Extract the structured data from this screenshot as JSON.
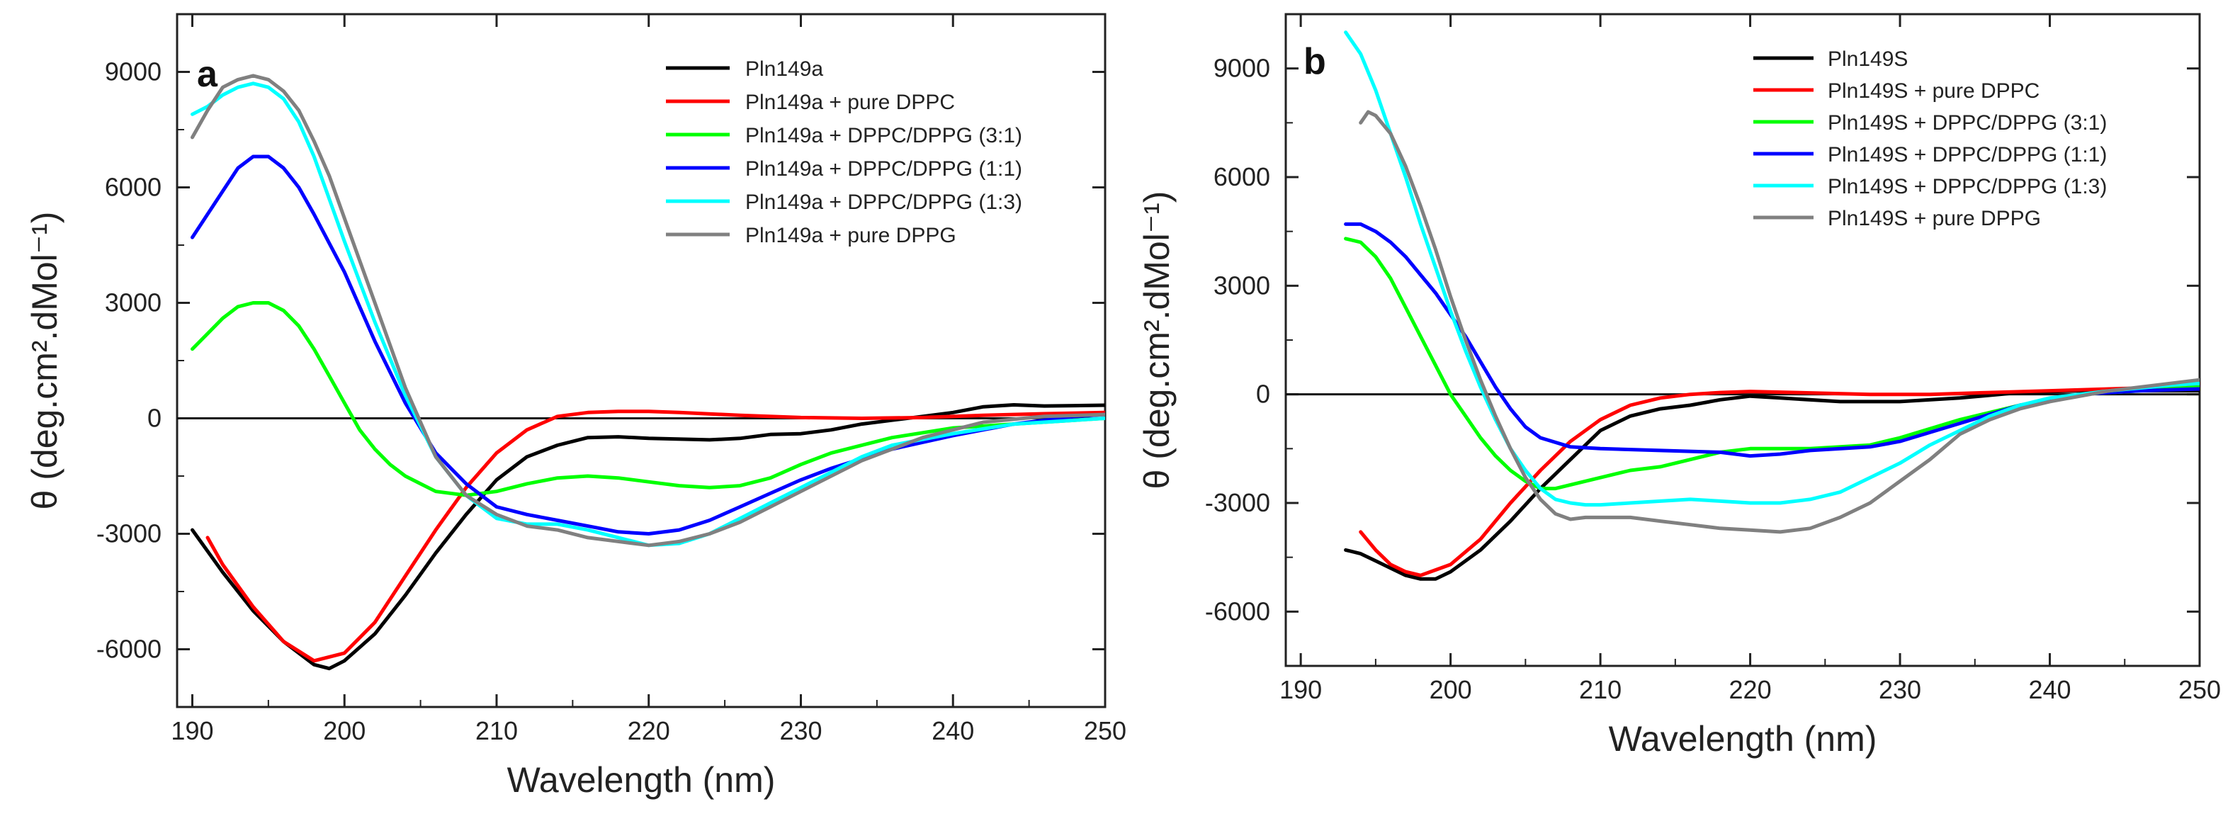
{
  "chart_data": [
    {
      "type": "line",
      "panel_label": "a",
      "title": "",
      "xlabel": "Wavelength (nm)",
      "ylabel": "θ (deg.cm².dMol⁻¹)",
      "xlim": [
        189,
        250
      ],
      "ylim": [
        -7500,
        10500
      ],
      "xticks": [
        190,
        200,
        210,
        220,
        230,
        240,
        250
      ],
      "yticks": [
        -6000,
        -3000,
        0,
        3000,
        6000,
        9000
      ],
      "zero_line": true,
      "legend_position": "top-right",
      "series": [
        {
          "name": "Pln149a",
          "color": "#000000",
          "x": [
            190,
            192,
            194,
            196,
            198,
            199,
            200,
            202,
            204,
            206,
            208,
            210,
            212,
            214,
            216,
            218,
            220,
            224,
            226,
            228,
            230,
            232,
            234,
            236,
            238,
            240,
            242,
            244,
            246,
            248,
            250
          ],
          "y": [
            -2900,
            -4000,
            -5000,
            -5800,
            -6400,
            -6500,
            -6300,
            -5600,
            -4600,
            -3500,
            -2500,
            -1600,
            -1000,
            -700,
            -500,
            -480,
            -520,
            -560,
            -520,
            -420,
            -400,
            -300,
            -150,
            -50,
            50,
            150,
            300,
            350,
            320,
            330,
            340
          ]
        },
        {
          "name": "Pln149a + pure DPPC",
          "color": "#ff0000",
          "x": [
            191,
            192,
            194,
            196,
            198,
            200,
            202,
            204,
            206,
            208,
            210,
            212,
            214,
            216,
            218,
            220,
            222,
            226,
            230,
            234,
            238,
            242,
            246,
            250
          ],
          "y": [
            -3100,
            -3800,
            -4900,
            -5800,
            -6300,
            -6100,
            -5300,
            -4100,
            -2900,
            -1800,
            -900,
            -300,
            50,
            150,
            180,
            180,
            150,
            80,
            20,
            0,
            20,
            80,
            120,
            150
          ]
        },
        {
          "name": "Pln149a + DPPC/DPPG (3:1)",
          "color": "#00ff00",
          "x": [
            190,
            191,
            192,
            193,
            194,
            195,
            196,
            197,
            198,
            199,
            200,
            201,
            202,
            203,
            204,
            205,
            206,
            208,
            210,
            212,
            214,
            216,
            218,
            220,
            222,
            224,
            226,
            228,
            230,
            232,
            236,
            240,
            244,
            248,
            250
          ],
          "y": [
            1800,
            2200,
            2600,
            2900,
            3000,
            3000,
            2800,
            2400,
            1800,
            1100,
            400,
            -300,
            -800,
            -1200,
            -1500,
            -1700,
            -1900,
            -2000,
            -1900,
            -1700,
            -1550,
            -1500,
            -1550,
            -1650,
            -1750,
            -1800,
            -1750,
            -1550,
            -1200,
            -900,
            -500,
            -250,
            -150,
            -50,
            0
          ]
        },
        {
          "name": "Pln149a + DPPC/DPPG (1:1)",
          "color": "#0000ff",
          "x": [
            190,
            192,
            193,
            194,
            195,
            196,
            197,
            198,
            200,
            202,
            204,
            206,
            208,
            210,
            212,
            214,
            216,
            218,
            220,
            222,
            224,
            226,
            228,
            230,
            232,
            236,
            240,
            244,
            248,
            250
          ],
          "y": [
            4700,
            5900,
            6500,
            6800,
            6800,
            6500,
            6000,
            5300,
            3800,
            2000,
            400,
            -900,
            -1700,
            -2300,
            -2500,
            -2650,
            -2800,
            -2950,
            -3000,
            -2900,
            -2650,
            -2300,
            -1950,
            -1600,
            -1300,
            -800,
            -450,
            -150,
            50,
            100
          ]
        },
        {
          "name": "Pln149a + DPPC/DPPG (1:3)",
          "color": "#00ffff",
          "x": [
            190,
            191,
            192,
            193,
            194,
            195,
            196,
            197,
            198,
            199,
            200,
            202,
            204,
            206,
            208,
            210,
            212,
            214,
            216,
            218,
            220,
            222,
            224,
            226,
            228,
            230,
            232,
            234,
            236,
            240,
            244,
            248,
            250
          ],
          "y": [
            7900,
            8100,
            8400,
            8600,
            8700,
            8600,
            8300,
            7700,
            6800,
            5700,
            4600,
            2500,
            600,
            -1000,
            -2000,
            -2600,
            -2750,
            -2750,
            -2900,
            -3100,
            -3300,
            -3250,
            -3000,
            -2600,
            -2200,
            -1800,
            -1400,
            -1000,
            -700,
            -400,
            -150,
            -50,
            0
          ]
        },
        {
          "name": "Pln149a + pure DPPG",
          "color": "#808080",
          "x": [
            190,
            191,
            192,
            193,
            194,
            195,
            196,
            197,
            198,
            199,
            200,
            202,
            204,
            206,
            208,
            210,
            212,
            214,
            216,
            218,
            220,
            222,
            224,
            226,
            228,
            230,
            234,
            238,
            242,
            246,
            250
          ],
          "y": [
            7300,
            8000,
            8600,
            8800,
            8900,
            8800,
            8500,
            8000,
            7200,
            6300,
            5200,
            3000,
            800,
            -1000,
            -2000,
            -2500,
            -2800,
            -2900,
            -3100,
            -3200,
            -3300,
            -3200,
            -3000,
            -2700,
            -2300,
            -1900,
            -1100,
            -500,
            -100,
            50,
            100
          ]
        }
      ]
    },
    {
      "type": "line",
      "panel_label": "b",
      "title": "",
      "xlabel": "Wavelength (nm)",
      "ylabel": "θ (deg.cm².dMol⁻¹)",
      "xlim": [
        189,
        250
      ],
      "ylim": [
        -7500,
        10500
      ],
      "xticks": [
        190,
        200,
        210,
        220,
        230,
        240,
        250
      ],
      "yticks": [
        -6000,
        -3000,
        0,
        3000,
        6000,
        9000
      ],
      "zero_line": true,
      "legend_position": "top-right",
      "series": [
        {
          "name": "Pln149S",
          "color": "#000000",
          "x": [
            193,
            194,
            195,
            196,
            197,
            198,
            199,
            200,
            202,
            204,
            206,
            208,
            210,
            212,
            214,
            216,
            218,
            220,
            222,
            226,
            230,
            234,
            238,
            242,
            246,
            250
          ],
          "y": [
            -4300,
            -4400,
            -4600,
            -4800,
            -5000,
            -5100,
            -5100,
            -4900,
            -4300,
            -3500,
            -2600,
            -1800,
            -1000,
            -600,
            -400,
            -300,
            -150,
            -50,
            -100,
            -200,
            -200,
            -100,
            50,
            100,
            100,
            100
          ]
        },
        {
          "name": "Pln149S + pure DPPC",
          "color": "#ff0000",
          "x": [
            194,
            195,
            196,
            197,
            198,
            200,
            202,
            204,
            206,
            208,
            210,
            212,
            214,
            216,
            218,
            220,
            224,
            228,
            232,
            236,
            240,
            244,
            248,
            250
          ],
          "y": [
            -3800,
            -4300,
            -4700,
            -4900,
            -5000,
            -4700,
            -4000,
            -3000,
            -2100,
            -1300,
            -700,
            -300,
            -100,
            0,
            50,
            80,
            40,
            0,
            0,
            50,
            100,
            150,
            200,
            200
          ]
        },
        {
          "name": "Pln149S + DPPC/DPPG (3:1)",
          "color": "#00ff00",
          "x": [
            193,
            194,
            195,
            196,
            197,
            198,
            199,
            200,
            201,
            202,
            203,
            204,
            205,
            206,
            207,
            208,
            210,
            212,
            214,
            216,
            218,
            220,
            224,
            228,
            230,
            234,
            238,
            242,
            246,
            250
          ],
          "y": [
            4300,
            4200,
            3800,
            3200,
            2400,
            1600,
            800,
            0,
            -600,
            -1200,
            -1700,
            -2100,
            -2400,
            -2600,
            -2600,
            -2500,
            -2300,
            -2100,
            -2000,
            -1800,
            -1600,
            -1500,
            -1500,
            -1400,
            -1200,
            -700,
            -300,
            0,
            100,
            200
          ]
        },
        {
          "name": "Pln149S + DPPC/DPPG (1:1)",
          "color": "#0000ff",
          "x": [
            193,
            194,
            195,
            196,
            197,
            198,
            199,
            200,
            201,
            202,
            203,
            204,
            205,
            206,
            208,
            210,
            214,
            218,
            220,
            222,
            224,
            228,
            230,
            234,
            238,
            242,
            246,
            250
          ],
          "y": [
            4700,
            4700,
            4500,
            4200,
            3800,
            3300,
            2800,
            2200,
            1600,
            900,
            200,
            -400,
            -900,
            -1200,
            -1450,
            -1500,
            -1550,
            -1600,
            -1700,
            -1650,
            -1550,
            -1450,
            -1300,
            -800,
            -300,
            0,
            100,
            150
          ]
        },
        {
          "name": "Pln149S + DPPC/DPPG (1:3)",
          "color": "#00ffff",
          "x": [
            193,
            194,
            195,
            196,
            197,
            198,
            199,
            200,
            201,
            202,
            203,
            204,
            205,
            206,
            207,
            208,
            209,
            210,
            212,
            214,
            216,
            218,
            220,
            222,
            224,
            226,
            228,
            230,
            232,
            234,
            236,
            238,
            240,
            244,
            248,
            250
          ],
          "y": [
            10000,
            9400,
            8400,
            7200,
            6000,
            4700,
            3500,
            2300,
            1200,
            200,
            -700,
            -1500,
            -2100,
            -2600,
            -2900,
            -3000,
            -3050,
            -3050,
            -3000,
            -2950,
            -2900,
            -2950,
            -3000,
            -3000,
            -2900,
            -2700,
            -2300,
            -1900,
            -1400,
            -1000,
            -600,
            -300,
            -100,
            100,
            250,
            300
          ]
        },
        {
          "name": "Pln149S + pure DPPG",
          "color": "#808080",
          "x": [
            194,
            194.5,
            195,
            196,
            197,
            198,
            199,
            200,
            201,
            202,
            203,
            204,
            205,
            206,
            207,
            208,
            209,
            210,
            212,
            214,
            216,
            218,
            220,
            222,
            224,
            226,
            228,
            230,
            232,
            234,
            236,
            238,
            240,
            244,
            248,
            250
          ],
          "y": [
            7500,
            7800,
            7700,
            7200,
            6300,
            5200,
            4000,
            2700,
            1500,
            400,
            -600,
            -1500,
            -2300,
            -2900,
            -3300,
            -3450,
            -3400,
            -3400,
            -3400,
            -3500,
            -3600,
            -3700,
            -3750,
            -3800,
            -3700,
            -3400,
            -3000,
            -2400,
            -1800,
            -1100,
            -700,
            -400,
            -200,
            100,
            300,
            400
          ]
        }
      ]
    }
  ]
}
